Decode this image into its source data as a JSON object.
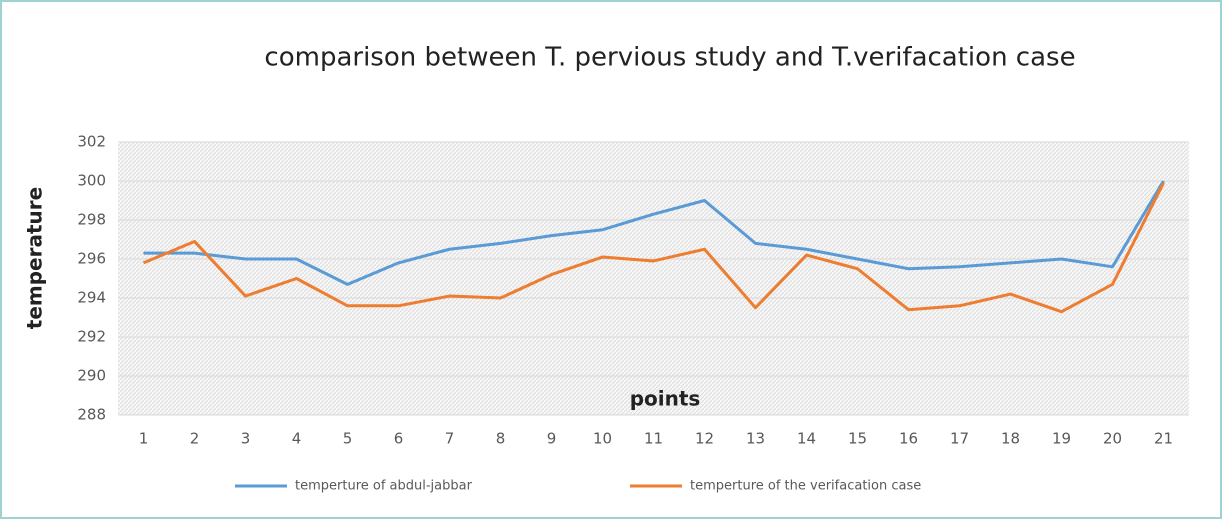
{
  "chart_data": {
    "type": "line",
    "title": "comparison between T. pervious study and T.verifacation case",
    "x_label": "points",
    "y_label": "temperature",
    "categories": [
      "1",
      "2",
      "3",
      "4",
      "5",
      "6",
      "7",
      "8",
      "9",
      "10",
      "11",
      "12",
      "13",
      "14",
      "15",
      "16",
      "17",
      "18",
      "19",
      "20",
      "21"
    ],
    "series": [
      {
        "name": "temperture of abdul-jabbar",
        "color": "#5b9bd5",
        "values": [
          296.3,
          296.3,
          296.0,
          296.0,
          294.7,
          295.8,
          296.5,
          296.8,
          297.2,
          297.5,
          298.3,
          299.0,
          296.8,
          296.5,
          296.0,
          295.5,
          295.6,
          295.8,
          296.0,
          295.6,
          300.0
        ]
      },
      {
        "name": "temperture of the verifacation case",
        "color": "#ed7d31",
        "values": [
          295.8,
          296.9,
          294.1,
          295.0,
          293.6,
          293.6,
          294.1,
          294.0,
          295.2,
          296.1,
          295.9,
          296.5,
          293.5,
          296.2,
          295.5,
          293.4,
          293.6,
          294.2,
          293.3,
          294.7,
          299.9
        ]
      }
    ],
    "ylim": [
      288,
      302
    ],
    "yticks": [
      288,
      290,
      292,
      294,
      296,
      298,
      300,
      302
    ],
    "grid": true,
    "legend": "bottom"
  }
}
